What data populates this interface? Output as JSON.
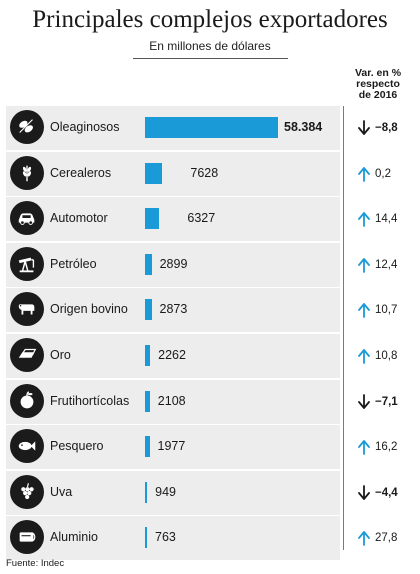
{
  "title": "Principales complejos exportadores",
  "subtitle": "En millones de dólares",
  "change_header": [
    "Var. en %",
    "respecto",
    "de 2016"
  ],
  "source": "Fuente: Indec",
  "colors": {
    "bar": "#1a9ad6",
    "up": "#1a9ad6",
    "down": "#1a1a1a",
    "icon_bg": "#1b1b1b",
    "label_bg": "#ededed"
  },
  "chart_data": {
    "type": "bar",
    "orientation": "horizontal",
    "title": "Principales complejos exportadores",
    "subtitle": "En millones de dólares",
    "xlim": [
      0,
      58384
    ],
    "categories": [
      "Oleaginosos",
      "Cerealeros",
      "Automotor",
      "Petróleo",
      "Origen bovino",
      "Oro",
      "Frutihortícolas",
      "Pesquero",
      "Uva",
      "Aluminio"
    ],
    "values": [
      58384,
      7628,
      6327,
      2899,
      2873,
      2262,
      2108,
      1977,
      949,
      763
    ],
    "value_labels": [
      "58.384",
      "7628",
      "6327",
      "2899",
      "2873",
      "2262",
      "2108",
      "1977",
      "949",
      "763"
    ],
    "change_labels": [
      "−8,8",
      "0,2",
      "14,4",
      "12,4",
      "10,7",
      "10,8",
      "−7,1",
      "16,2",
      "−4,4",
      "27,8"
    ],
    "change_direction": [
      "down",
      "up",
      "up",
      "up",
      "up",
      "up",
      "down",
      "up",
      "down",
      "up"
    ],
    "icons": [
      "soybean-icon",
      "wheat-icon",
      "car-icon",
      "oil-pump-icon",
      "cow-icon",
      "gold-bar-icon",
      "fruit-icon",
      "fish-icon",
      "grapes-icon",
      "aluminum-icon"
    ]
  }
}
